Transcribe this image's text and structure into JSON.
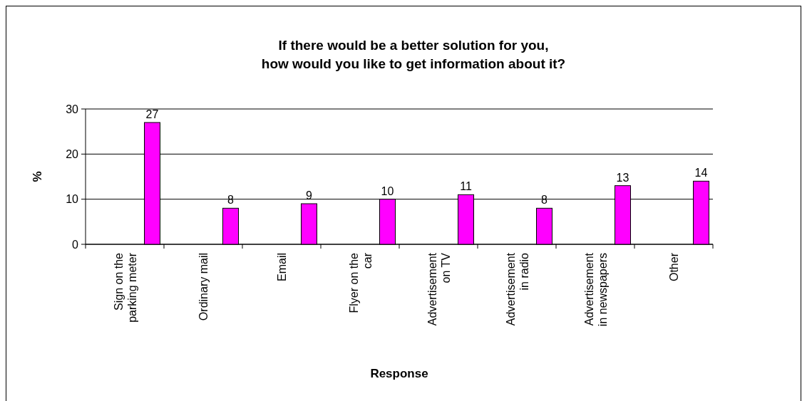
{
  "chart_data": {
    "type": "bar",
    "title": "If there would be a better solution for you,\nhow would you like to get information about it?",
    "xlabel": "Response",
    "ylabel": "%",
    "categories": [
      "Sign on the parking meter",
      "Ordinary mail",
      "Email",
      "Flyer on the car",
      "Advertisement on TV",
      "Advertisement in radio",
      "Advertisement in newspapers",
      "Other"
    ],
    "values": [
      27,
      8,
      9,
      10,
      11,
      8,
      13,
      14
    ],
    "color": "#ff00ff",
    "ylim": [
      0,
      30
    ],
    "yticks": [
      0,
      10,
      20,
      30
    ],
    "grid": "y",
    "data_labels": true
  }
}
